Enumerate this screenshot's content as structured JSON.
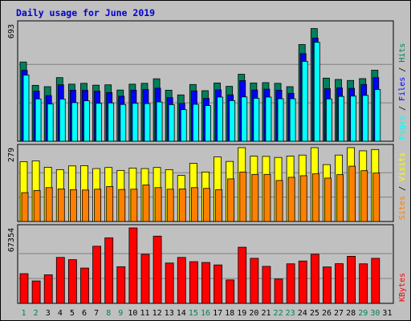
{
  "chart_data": {
    "type": "bar",
    "title": "Daily usage for June 2019",
    "days": [
      "1",
      "2",
      "3",
      "4",
      "5",
      "6",
      "7",
      "8",
      "9",
      "10",
      "11",
      "12",
      "13",
      "14",
      "15",
      "16",
      "17",
      "18",
      "19",
      "20",
      "21",
      "22",
      "23",
      "24",
      "25",
      "26",
      "27",
      "28",
      "29",
      "30",
      "31"
    ],
    "weekend_days": [
      "1",
      "2",
      "8",
      "9",
      "15",
      "16",
      "22",
      "23",
      "29",
      "30"
    ],
    "colors": {
      "hits": "#00805c",
      "files": "#0000ff",
      "pages": "#00ffff",
      "visits": "#ffff00",
      "sites": "#ff8000",
      "kbytes": "#ff0000",
      "title": "#0000cc",
      "weekday": "#000000",
      "weekend": "#00805c",
      "background": "#c0c0c0"
    },
    "panels": [
      {
        "name": "hits-files-pages",
        "ymax_label": "693",
        "ymax": 693,
        "legend": [
          {
            "text": "Pages",
            "color": "#00ffff"
          },
          {
            "text": "Files",
            "color": "#0000ff"
          },
          {
            "text": "Hits",
            "color": "#00805c"
          }
        ],
        "series": [
          {
            "name": "Hits",
            "color": "#00805c",
            "values": [
              472,
              333,
              325,
              379,
              340,
              345,
              334,
              336,
              305,
              340,
              345,
              372,
              304,
              276,
              338,
              301,
              347,
              327,
              399,
              347,
              349,
              345,
              325,
              576,
              671,
              376,
              368,
              362,
              373,
              423,
              0
            ]
          },
          {
            "name": "Files",
            "color": "#0000ff",
            "values": [
              422,
              298,
              272,
              336,
              304,
              303,
              298,
              290,
              268,
              304,
              308,
              316,
              260,
              225,
              300,
              255,
              306,
              276,
              361,
              305,
              310,
              304,
              285,
              522,
              614,
              313,
              318,
              315,
              338,
              379,
              0
            ]
          },
          {
            "name": "Pages",
            "color": "#00ffff",
            "values": [
              394,
              252,
              222,
              251,
              230,
              241,
              226,
              228,
              219,
              226,
              224,
              234,
              218,
              188,
              220,
              212,
              263,
              242,
              264,
              256,
              263,
              253,
              253,
              476,
              589,
              252,
              267,
              269,
              273,
              308,
              0
            ]
          }
        ]
      },
      {
        "name": "visits-sites",
        "ymax_label": "279",
        "ymax": 279,
        "legend": [
          {
            "text": "Sites",
            "color": "#ff8000"
          },
          {
            "text": "Visits",
            "color": "#ffff00"
          }
        ],
        "series": [
          {
            "name": "Visits",
            "color": "#ffff00",
            "values": [
              226,
              229,
              205,
              196,
              210,
              211,
              200,
              204,
              193,
              202,
              200,
              204,
              196,
              174,
              220,
              187,
              244,
              227,
              279,
              247,
              246,
              242,
              247,
              251,
              279,
              215,
              251,
              279,
              267,
              272,
              0
            ]
          },
          {
            "name": "Sites",
            "color": "#ff8000",
            "values": [
              109,
              117,
              128,
              123,
              120,
              119,
              122,
              132,
              121,
              122,
              138,
              128,
              122,
              123,
              128,
              125,
              120,
              161,
              187,
              178,
              178,
              155,
              167,
              173,
              180,
              164,
              177,
              209,
              192,
              183,
              0
            ]
          }
        ]
      },
      {
        "name": "kbytes",
        "ymax_label": "67354",
        "ymax": 67354,
        "legend": [
          {
            "text": "KBytes",
            "color": "#ff0000"
          }
        ],
        "series": [
          {
            "name": "KBytes",
            "color": "#ff0000",
            "values": [
              26500,
              20000,
              25500,
              41000,
              39000,
              31500,
              51000,
              58500,
              32700,
              67354,
              43800,
              60000,
              36000,
              41000,
              37200,
              36500,
              34300,
              20900,
              50100,
              40200,
              33000,
              21700,
              35300,
              37800,
              43800,
              32500,
              35400,
              42000,
              35300,
              40200,
              0
            ]
          }
        ]
      }
    ]
  }
}
